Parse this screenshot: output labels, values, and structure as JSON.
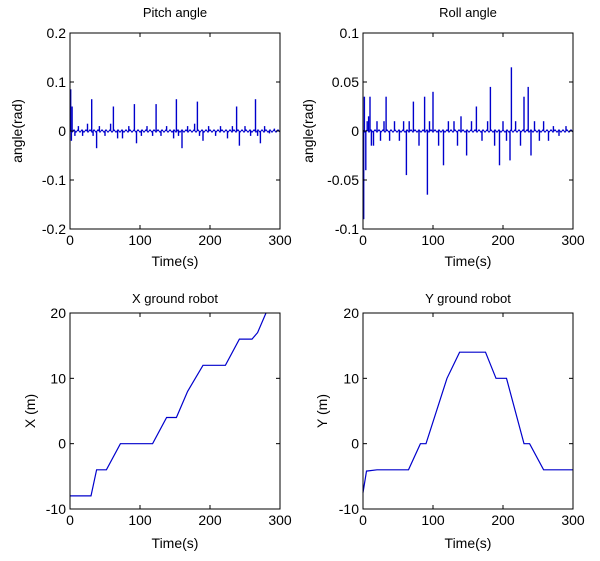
{
  "colors": {
    "series": "#0000cc",
    "axes": "#000000",
    "background": "#ffffff"
  },
  "chart_data": [
    {
      "type": "line",
      "title": "Pitch angle",
      "xlabel": "Time(s)",
      "ylabel": "angle(rad)",
      "xlim": [
        0,
        300
      ],
      "ylim": [
        -0.2,
        0.2
      ],
      "xticks": [
        "0",
        "100",
        "200",
        "300"
      ],
      "yticks": [
        "-0.2",
        "-0.1",
        "0",
        "0.1",
        "0.2"
      ],
      "grid": false,
      "baseline": 0,
      "spikes": {
        "t": [
          1,
          2,
          3,
          7,
          12,
          18,
          25,
          31,
          33,
          38,
          42,
          50,
          58,
          62,
          68,
          75,
          84,
          92,
          95,
          102,
          110,
          118,
          123,
          130,
          138,
          148,
          152,
          155,
          160,
          168,
          178,
          182,
          185,
          190,
          198,
          208,
          215,
          225,
          232,
          238,
          242,
          250,
          258,
          265,
          268,
          272,
          278,
          285,
          292
        ],
        "y": [
          0.085,
          -0.02,
          0.05,
          -0.01,
          0.01,
          -0.01,
          0.015,
          0.065,
          -0.01,
          -0.035,
          0.01,
          -0.01,
          0.015,
          0.05,
          -0.015,
          -0.015,
          0.01,
          0.055,
          -0.025,
          -0.01,
          0.01,
          -0.01,
          0.055,
          -0.01,
          0.01,
          -0.015,
          0.065,
          -0.01,
          -0.035,
          0.01,
          0.015,
          0.06,
          -0.01,
          -0.02,
          0.01,
          -0.01,
          0.01,
          -0.015,
          0.01,
          0.05,
          -0.03,
          0.01,
          -0.01,
          0.065,
          -0.01,
          -0.025,
          0.01,
          -0.005,
          0.005
        ]
      }
    },
    {
      "type": "line",
      "title": "Roll angle",
      "xlabel": "Time(s)",
      "ylabel": "angle(rad)",
      "xlim": [
        0,
        300
      ],
      "ylim": [
        -0.1,
        0.1
      ],
      "xticks": [
        "0",
        "100",
        "200",
        "300"
      ],
      "yticks": [
        "-0.1",
        "-0.05",
        "0",
        "0.05",
        "0.1"
      ],
      "grid": false,
      "baseline": 0,
      "spikes": {
        "t": [
          1,
          2,
          4,
          6,
          8,
          10,
          12,
          15,
          20,
          25,
          30,
          33,
          38,
          45,
          52,
          58,
          62,
          66,
          72,
          80,
          88,
          92,
          95,
          100,
          108,
          115,
          122,
          130,
          135,
          140,
          148,
          155,
          162,
          170,
          178,
          182,
          188,
          195,
          200,
          205,
          210,
          212,
          218,
          225,
          230,
          236,
          240,
          245,
          252,
          258,
          265,
          272,
          280,
          290
        ],
        "y": [
          -0.09,
          0.035,
          -0.04,
          0.01,
          0.015,
          0.035,
          -0.015,
          -0.015,
          0.01,
          -0.01,
          0.01,
          0.035,
          -0.01,
          0.01,
          -0.01,
          0.01,
          -0.045,
          0.01,
          0.03,
          -0.015,
          0.035,
          -0.065,
          0.01,
          0.04,
          -0.015,
          -0.035,
          0.01,
          0.01,
          -0.015,
          0.015,
          -0.025,
          0.01,
          0.025,
          -0.01,
          0.01,
          0.045,
          -0.015,
          -0.035,
          0.01,
          -0.01,
          -0.03,
          0.065,
          0.01,
          -0.015,
          0.035,
          0.045,
          -0.025,
          0.01,
          -0.01,
          0.01,
          -0.01,
          0.005,
          -0.005,
          0.005
        ]
      }
    },
    {
      "type": "line",
      "title": "X ground robot",
      "xlabel": "Time(s)",
      "ylabel": "X (m)",
      "xlim": [
        0,
        300
      ],
      "ylim": [
        -10,
        20
      ],
      "xticks": [
        "0",
        "100",
        "200",
        "300"
      ],
      "yticks": [
        "-10",
        "0",
        "10",
        "20"
      ],
      "grid": false,
      "x": [
        0,
        30,
        38,
        52,
        72,
        118,
        138,
        152,
        168,
        190,
        222,
        242,
        260,
        268,
        280
      ],
      "y": [
        -8,
        -8,
        -4,
        -4,
        0,
        0,
        4,
        4,
        8,
        12,
        12,
        16,
        16,
        17,
        20
      ]
    },
    {
      "type": "line",
      "title": "Y ground robot",
      "xlabel": "Time(s)",
      "ylabel": "Y (m)",
      "xlim": [
        0,
        300
      ],
      "ylim": [
        -10,
        20
      ],
      "xticks": [
        "0",
        "100",
        "200",
        "300"
      ],
      "yticks": [
        "-10",
        "0",
        "10",
        "20"
      ],
      "grid": false,
      "x": [
        0,
        5,
        20,
        65,
        82,
        90,
        120,
        138,
        175,
        190,
        205,
        230,
        238,
        258,
        300
      ],
      "y": [
        -7.5,
        -4.2,
        -4,
        -4,
        0,
        0,
        10,
        14,
        14,
        10,
        10,
        0,
        0,
        -4,
        -4
      ]
    }
  ]
}
